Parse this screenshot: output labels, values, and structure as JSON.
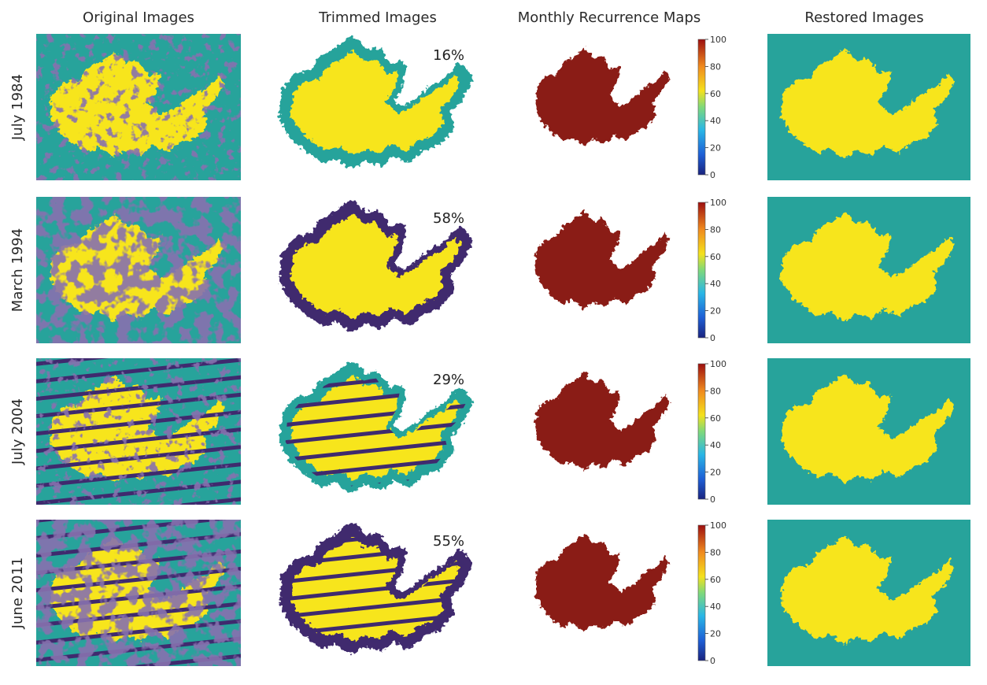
{
  "columns": [
    "Original Images",
    "Trimmed Images",
    "Monthly Recurrence Maps",
    "Restored Images"
  ],
  "rows": [
    {
      "label": "July 1984",
      "percent": "16%",
      "striped": false,
      "cloud": 0.25,
      "water": 0.45
    },
    {
      "label": "March 1994",
      "percent": "58%",
      "striped": false,
      "cloud": 0.55,
      "water": 0.3
    },
    {
      "label": "July 2004",
      "percent": "29%",
      "striped": true,
      "cloud": 0.08,
      "water": 0.35
    },
    {
      "label": "June 2011",
      "percent": "55%",
      "striped": true,
      "cloud": 0.5,
      "water": 0.3
    }
  ],
  "colorbar": {
    "ticks": [
      "0",
      "20",
      "40",
      "60",
      "80",
      "100"
    ],
    "range": [
      0,
      100
    ]
  },
  "colors": {
    "water": "#f7e51e",
    "land": "#27a39b",
    "cloud": "#3f2a6e",
    "recurrence_high": "#8a1a12"
  }
}
